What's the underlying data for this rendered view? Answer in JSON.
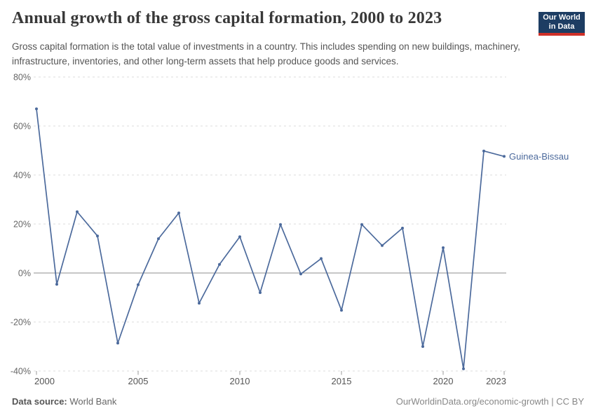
{
  "header": {
    "title": "Annual growth of the gross capital formation, 2000 to 2023",
    "subtitle": "Gross capital formation is the total value of investments in a country. This includes spending on new buildings, machinery, infrastructure, inventories, and other long-term assets that help produce goods and services.",
    "logo": {
      "line1": "Our World",
      "line2": "in Data",
      "bg_color": "#1d3d63",
      "bar_color": "#cf3028"
    }
  },
  "chart_data": {
    "type": "line",
    "title": "Annual growth of the gross capital formation, 2000 to 2023",
    "xlabel": "",
    "ylabel": "",
    "xlim": [
      2000,
      2023
    ],
    "ylim": [
      -40,
      80
    ],
    "grid": "horizontal-dashed",
    "zero_line": true,
    "legend_position": "end-of-line-label",
    "y_ticks": [
      80,
      60,
      40,
      20,
      0,
      -20,
      -40
    ],
    "y_tick_labels": [
      "80%",
      "60%",
      "40%",
      "20%",
      "0%",
      "-20%",
      "-40%"
    ],
    "x_ticks": [
      2000,
      2005,
      2010,
      2015,
      2020,
      2023
    ],
    "series": [
      {
        "name": "Guinea-Bissau",
        "color": "#4C6A9C",
        "x": [
          2000,
          2001,
          2002,
          2003,
          2004,
          2005,
          2006,
          2007,
          2008,
          2009,
          2010,
          2011,
          2012,
          2013,
          2014,
          2015,
          2016,
          2017,
          2018,
          2019,
          2020,
          2021,
          2022,
          2023
        ],
        "values": [
          67,
          -4.6,
          25,
          15.1,
          -28.6,
          -4.8,
          14,
          24.5,
          -12.3,
          3.5,
          14.8,
          -8,
          19.8,
          -0.4,
          5.9,
          -15.2,
          19.8,
          11.2,
          18.3,
          -30,
          10.3,
          -39.1,
          49.8,
          47.6
        ]
      }
    ]
  },
  "footer": {
    "source_label": "Data source:",
    "source_value": " World Bank",
    "credit": "OurWorldinData.org/economic-growth | CC BY"
  },
  "colors": {
    "line": "#4C6A9C",
    "grid": "#dddddd",
    "zero_line": "#8f8f8f",
    "x_tick_mark": "#999999",
    "y_axis_text": "#666666",
    "x_axis_text": "#555555",
    "title_text": "#383838",
    "subtitle_text": "#555555",
    "footer_text": "#888888",
    "background": "#ffffff"
  }
}
